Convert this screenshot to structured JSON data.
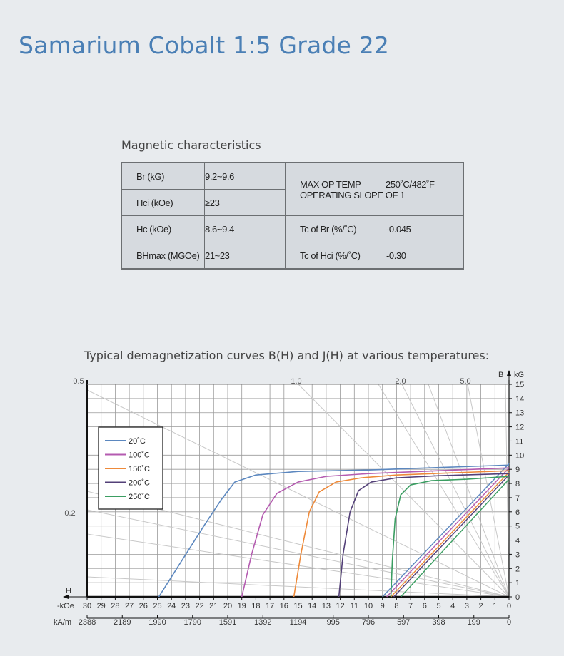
{
  "page": {
    "title": "Samarium Cobalt 1:5 Grade 22",
    "table_heading": "Magnetic characteristics",
    "chart_heading": "Typical demagnetization curves B(H) and J(H) at various temperatures:"
  },
  "properties": {
    "br_label": "Br (kG)",
    "br_value": "9.2~9.6",
    "hci_label": "Hci (kOe)",
    "hci_value": "≥23",
    "hc_label": "Hc (kOe)",
    "hc_value": "8.6~9.4",
    "bhmax_label": "BHmax (MGOe)",
    "bhmax_value": "21~23",
    "maxop_label": "MAX OP TEMP",
    "maxop_value": "250˚C/482˚F",
    "slope_label": "OPERATING SLOPE OF 1",
    "tcbr_label": "Tc of Br (%/˚C)",
    "tcbr_value": "-0.045",
    "tchci_label": "Tc of Hci (%/˚C)",
    "tchci_value": "-0.30"
  },
  "chart_data": {
    "type": "line",
    "x_unit_label": "-kOe",
    "x_unit_label2": "kA/m",
    "x_axis_letter": "H",
    "y_axis_letter": "B",
    "y_unit_label": "kG",
    "xlim": [
      30,
      0
    ],
    "ylim": [
      0,
      15
    ],
    "x_ticks": [
      "30",
      "29",
      "28",
      "27",
      "26",
      "25",
      "24",
      "23",
      "22",
      "21",
      "20",
      "19",
      "18",
      "17",
      "16",
      "15",
      "14",
      "13",
      "12",
      "11",
      "10",
      "9",
      "8",
      "7",
      "6",
      "5",
      "4",
      "3",
      "2",
      "1",
      "0"
    ],
    "x_ticks_ka": [
      {
        "h": 30,
        "label": "2388"
      },
      {
        "h": 27.5,
        "label": "2189"
      },
      {
        "h": 25,
        "label": "1990"
      },
      {
        "h": 22.5,
        "label": "1790"
      },
      {
        "h": 20,
        "label": "1591"
      },
      {
        "h": 17.5,
        "label": "1392"
      },
      {
        "h": 15,
        "label": "1194"
      },
      {
        "h": 12.5,
        "label": "995"
      },
      {
        "h": 10,
        "label": "796"
      },
      {
        "h": 7.5,
        "label": "597"
      },
      {
        "h": 5,
        "label": "398"
      },
      {
        "h": 2.5,
        "label": "199"
      },
      {
        "h": 0,
        "label": "0"
      }
    ],
    "y_ticks": [
      "0",
      "1",
      "2",
      "3",
      "4",
      "5",
      "6",
      "7",
      "8",
      "9",
      "10",
      "11",
      "12",
      "13",
      "14",
      "15"
    ],
    "load_lines": [
      {
        "label": "0.5",
        "label_pos": "top"
      },
      {
        "label": "1.0",
        "label_pos": "top"
      },
      {
        "label": "2.0",
        "label_pos": "top"
      },
      {
        "label": "5.0",
        "label_pos": "top"
      },
      {
        "label": "0.2",
        "label_pos": "left"
      }
    ],
    "grid": true,
    "legend_position": "upper-left",
    "series": [
      {
        "name": "20˚C",
        "color": "#5b87bf",
        "j_curve": [
          [
            24.9,
            0
          ],
          [
            23.3,
            2.5
          ],
          [
            21.7,
            5
          ],
          [
            20.5,
            6.8
          ],
          [
            19.5,
            8.1
          ],
          [
            18.0,
            8.6
          ],
          [
            15,
            8.85
          ],
          [
            10,
            8.95
          ],
          [
            0,
            9.3
          ]
        ],
        "b_curve": [
          [
            9.0,
            0
          ],
          [
            0,
            9.4
          ]
        ]
      },
      {
        "name": "100˚C",
        "color": "#b45bb0",
        "j_curve": [
          [
            19.0,
            0
          ],
          [
            18.3,
            3
          ],
          [
            17.5,
            5.8
          ],
          [
            16.5,
            7.3
          ],
          [
            15,
            8.1
          ],
          [
            13,
            8.5
          ],
          [
            10,
            8.7
          ],
          [
            0,
            9.1
          ]
        ],
        "b_curve": [
          [
            8.7,
            0
          ],
          [
            0,
            9.1
          ]
        ]
      },
      {
        "name": "150˚C",
        "color": "#ee8a3a",
        "j_curve": [
          [
            15.3,
            0
          ],
          [
            14.8,
            3
          ],
          [
            14.2,
            6
          ],
          [
            13.5,
            7.4
          ],
          [
            12.3,
            8.1
          ],
          [
            10.5,
            8.4
          ],
          [
            8,
            8.6
          ],
          [
            0,
            8.9
          ]
        ],
        "b_curve": [
          [
            8.4,
            0
          ],
          [
            0,
            8.8
          ]
        ]
      },
      {
        "name": "200˚C",
        "color": "#534078",
        "j_curve": [
          [
            12.1,
            0
          ],
          [
            11.8,
            3
          ],
          [
            11.3,
            6
          ],
          [
            10.7,
            7.5
          ],
          [
            9.8,
            8.1
          ],
          [
            8,
            8.4
          ],
          [
            5,
            8.55
          ],
          [
            0,
            8.7
          ]
        ],
        "b_curve": [
          [
            8.2,
            0
          ],
          [
            0,
            8.6
          ]
        ]
      },
      {
        "name": "250˚C",
        "color": "#3b9e62",
        "j_curve": [
          [
            8.4,
            0
          ],
          [
            8.3,
            2.5
          ],
          [
            8.1,
            5.5
          ],
          [
            7.7,
            7.2
          ],
          [
            7.0,
            7.9
          ],
          [
            5.5,
            8.2
          ],
          [
            3,
            8.3
          ],
          [
            0,
            8.5
          ]
        ],
        "b_curve": [
          [
            7.7,
            0
          ],
          [
            0,
            8.3
          ]
        ]
      }
    ]
  }
}
